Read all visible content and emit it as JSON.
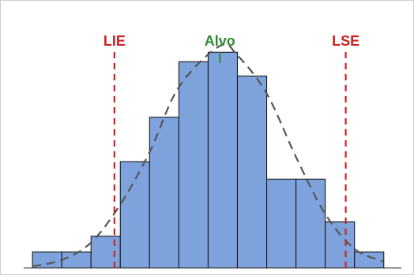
{
  "chart_data": {
    "type": "bar",
    "title": "",
    "xlabel": "",
    "ylabel": "",
    "bins": [
      {
        "from": 0,
        "to": 1,
        "value": 1.0
      },
      {
        "from": 1,
        "to": 2,
        "value": 1.0
      },
      {
        "from": 2,
        "to": 3,
        "value": 2.0
      },
      {
        "from": 3,
        "to": 4,
        "value": 6.7
      },
      {
        "from": 4,
        "to": 5,
        "value": 9.5
      },
      {
        "from": 5,
        "to": 6,
        "value": 13.0
      },
      {
        "from": 6,
        "to": 7,
        "value": 13.6
      },
      {
        "from": 7,
        "to": 8,
        "value": 12.1
      },
      {
        "from": 8,
        "to": 9,
        "value": 5.6
      },
      {
        "from": 9,
        "to": 10,
        "value": 5.6
      },
      {
        "from": 10,
        "to": 11,
        "value": 2.9
      },
      {
        "from": 11,
        "to": 12,
        "value": 1.0
      }
    ],
    "xlim": [
      -0.3,
      12.6
    ],
    "ylim": [
      0,
      16
    ],
    "fitted_curve": {
      "style": "dashed",
      "points": [
        [
          0.0,
          0.1
        ],
        [
          1.0,
          0.5
        ],
        [
          2.0,
          1.6
        ],
        [
          3.0,
          4.0
        ],
        [
          4.0,
          7.3
        ],
        [
          5.0,
          11.4
        ],
        [
          6.4,
          14.0
        ],
        [
          7.0,
          13.4
        ],
        [
          8.0,
          11.0
        ],
        [
          9.0,
          7.0
        ],
        [
          10.0,
          3.4
        ],
        [
          11.0,
          1.2
        ],
        [
          12.0,
          0.4
        ]
      ]
    },
    "spec_lines": [
      {
        "label": "LIE",
        "x": 2.8,
        "style": "dashed",
        "color": "#cc2222"
      },
      {
        "label": "Alvo",
        "x": 6.4,
        "style": "solid",
        "color": "#2e8b2e"
      },
      {
        "label": "LSE",
        "x": 10.7,
        "style": "dashed",
        "color": "#cc2222"
      }
    ],
    "bar_color": "#7da2dc",
    "bar_edge_color": "#1a1a1a",
    "grid": false,
    "legend": "none"
  }
}
